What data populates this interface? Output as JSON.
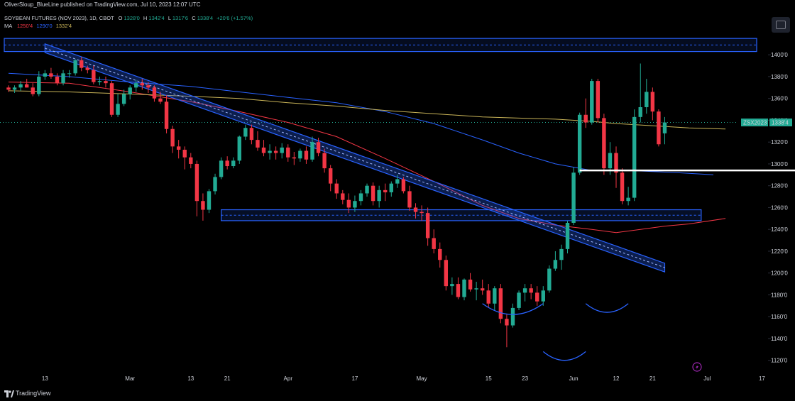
{
  "header": {
    "publisher_line": "OliverSloup_BlueLine published on TradingView.com, Jul 10, 2023 12:07 UTC"
  },
  "legend": {
    "title": "SOYBEAN FUTURES (NOV 2023), 1D, CBOT",
    "ohlc": [
      {
        "key": "O",
        "value": "1328'0"
      },
      {
        "key": "H",
        "value": "1342'4"
      },
      {
        "key": "L",
        "value": "1317'6"
      },
      {
        "key": "C",
        "value": "1338'4"
      }
    ],
    "change": "+20'6 (+1.57%)",
    "ma_label": "MA",
    "ma_values": [
      "1250'4",
      "1290'0",
      "1332'4"
    ]
  },
  "price_tag": {
    "symbol": "ZSX2023",
    "value": "1338'4"
  },
  "footer": {
    "brand": "TradingView"
  },
  "colors": {
    "up": "#22ab94",
    "down": "#f23645",
    "ma_red": "#f23645",
    "ma_blue": "#2962ff",
    "ma_yellow": "#c9b458",
    "channel": "#2962ff",
    "zone": "#2962ff",
    "white_line": "#ffffff",
    "pattern": "#2962ff"
  },
  "chart_data": {
    "type": "candlestick",
    "y_range": [
      1112,
      1432
    ],
    "y_ticks": [
      {
        "value": 1400,
        "label": "1400'0"
      },
      {
        "value": 1380,
        "label": "1380'0"
      },
      {
        "value": 1360,
        "label": "1360'0"
      },
      {
        "value": 1340,
        "label": "1340'0"
      },
      {
        "value": 1320,
        "label": "1320'0"
      },
      {
        "value": 1300,
        "label": "1300'0"
      },
      {
        "value": 1280,
        "label": "1280'0"
      },
      {
        "value": 1260,
        "label": "1260'0"
      },
      {
        "value": 1240,
        "label": "1240'0"
      },
      {
        "value": 1220,
        "label": "1220'0"
      },
      {
        "value": 1200,
        "label": "1200'0"
      },
      {
        "value": 1180,
        "label": "1180'0"
      },
      {
        "value": 1160,
        "label": "1160'0"
      },
      {
        "value": 1140,
        "label": "1140'0"
      },
      {
        "value": 1120,
        "label": "1120'0"
      }
    ],
    "x_ticks": [
      {
        "bar": 6,
        "label": "13"
      },
      {
        "bar": 20,
        "label": "Mar"
      },
      {
        "bar": 30,
        "label": "13"
      },
      {
        "bar": 36,
        "label": "21"
      },
      {
        "bar": 46,
        "label": "Apr"
      },
      {
        "bar": 57,
        "label": "17"
      },
      {
        "bar": 68,
        "label": "May"
      },
      {
        "bar": 79,
        "label": "15"
      },
      {
        "bar": 85,
        "label": "23"
      },
      {
        "bar": 93,
        "label": "Jun"
      },
      {
        "bar": 100,
        "label": "12"
      },
      {
        "bar": 106,
        "label": "21"
      },
      {
        "bar": 115,
        "label": "Jul"
      },
      {
        "bar": 124,
        "label": "17"
      }
    ],
    "candles": [
      {
        "o": 1370,
        "h": 1372,
        "l": 1366,
        "c": 1368
      },
      {
        "o": 1368,
        "h": 1372,
        "l": 1365,
        "c": 1370
      },
      {
        "o": 1370,
        "h": 1376,
        "l": 1367,
        "c": 1373
      },
      {
        "o": 1373,
        "h": 1378,
        "l": 1370,
        "c": 1370
      },
      {
        "o": 1370,
        "h": 1374,
        "l": 1362,
        "c": 1364
      },
      {
        "o": 1364,
        "h": 1385,
        "l": 1362,
        "c": 1380
      },
      {
        "o": 1380,
        "h": 1386,
        "l": 1377,
        "c": 1383
      },
      {
        "o": 1383,
        "h": 1388,
        "l": 1378,
        "c": 1380
      },
      {
        "o": 1380,
        "h": 1383,
        "l": 1372,
        "c": 1374
      },
      {
        "o": 1374,
        "h": 1386,
        "l": 1372,
        "c": 1383
      },
      {
        "o": 1383,
        "h": 1386,
        "l": 1379,
        "c": 1383
      },
      {
        "o": 1383,
        "h": 1396,
        "l": 1381,
        "c": 1395
      },
      {
        "o": 1395,
        "h": 1398,
        "l": 1385,
        "c": 1388
      },
      {
        "o": 1388,
        "h": 1390,
        "l": 1383,
        "c": 1386
      },
      {
        "o": 1386,
        "h": 1390,
        "l": 1373,
        "c": 1375
      },
      {
        "o": 1375,
        "h": 1380,
        "l": 1372,
        "c": 1376
      },
      {
        "o": 1376,
        "h": 1380,
        "l": 1370,
        "c": 1374
      },
      {
        "o": 1374,
        "h": 1376,
        "l": 1343,
        "c": 1345
      },
      {
        "o": 1345,
        "h": 1364,
        "l": 1343,
        "c": 1355
      },
      {
        "o": 1355,
        "h": 1368,
        "l": 1353,
        "c": 1364
      },
      {
        "o": 1364,
        "h": 1372,
        "l": 1359,
        "c": 1370
      },
      {
        "o": 1370,
        "h": 1377,
        "l": 1366,
        "c": 1374
      },
      {
        "o": 1374,
        "h": 1378,
        "l": 1368,
        "c": 1372
      },
      {
        "o": 1372,
        "h": 1375,
        "l": 1365,
        "c": 1370
      },
      {
        "o": 1370,
        "h": 1372,
        "l": 1357,
        "c": 1360
      },
      {
        "o": 1360,
        "h": 1366,
        "l": 1355,
        "c": 1357
      },
      {
        "o": 1357,
        "h": 1363,
        "l": 1328,
        "c": 1332
      },
      {
        "o": 1332,
        "h": 1335,
        "l": 1310,
        "c": 1316
      },
      {
        "o": 1316,
        "h": 1322,
        "l": 1305,
        "c": 1313
      },
      {
        "o": 1313,
        "h": 1316,
        "l": 1295,
        "c": 1306
      },
      {
        "o": 1306,
        "h": 1310,
        "l": 1296,
        "c": 1300
      },
      {
        "o": 1300,
        "h": 1303,
        "l": 1252,
        "c": 1266
      },
      {
        "o": 1266,
        "h": 1273,
        "l": 1248,
        "c": 1258
      },
      {
        "o": 1258,
        "h": 1277,
        "l": 1255,
        "c": 1275
      },
      {
        "o": 1275,
        "h": 1291,
        "l": 1272,
        "c": 1288
      },
      {
        "o": 1288,
        "h": 1306,
        "l": 1286,
        "c": 1303
      },
      {
        "o": 1303,
        "h": 1307,
        "l": 1295,
        "c": 1298
      },
      {
        "o": 1298,
        "h": 1306,
        "l": 1296,
        "c": 1303
      },
      {
        "o": 1303,
        "h": 1326,
        "l": 1300,
        "c": 1325
      },
      {
        "o": 1325,
        "h": 1336,
        "l": 1322,
        "c": 1333
      },
      {
        "o": 1333,
        "h": 1336,
        "l": 1318,
        "c": 1322
      },
      {
        "o": 1322,
        "h": 1330,
        "l": 1312,
        "c": 1315
      },
      {
        "o": 1315,
        "h": 1322,
        "l": 1307,
        "c": 1310
      },
      {
        "o": 1310,
        "h": 1318,
        "l": 1304,
        "c": 1312
      },
      {
        "o": 1312,
        "h": 1316,
        "l": 1304,
        "c": 1310
      },
      {
        "o": 1310,
        "h": 1319,
        "l": 1305,
        "c": 1315
      },
      {
        "o": 1315,
        "h": 1318,
        "l": 1302,
        "c": 1306
      },
      {
        "o": 1306,
        "h": 1311,
        "l": 1299,
        "c": 1305
      },
      {
        "o": 1305,
        "h": 1314,
        "l": 1302,
        "c": 1312
      },
      {
        "o": 1312,
        "h": 1316,
        "l": 1300,
        "c": 1304
      },
      {
        "o": 1304,
        "h": 1325,
        "l": 1302,
        "c": 1320
      },
      {
        "o": 1320,
        "h": 1324,
        "l": 1307,
        "c": 1310
      },
      {
        "o": 1310,
        "h": 1314,
        "l": 1292,
        "c": 1296
      },
      {
        "o": 1296,
        "h": 1299,
        "l": 1275,
        "c": 1282
      },
      {
        "o": 1282,
        "h": 1286,
        "l": 1268,
        "c": 1273
      },
      {
        "o": 1273,
        "h": 1276,
        "l": 1263,
        "c": 1267
      },
      {
        "o": 1267,
        "h": 1273,
        "l": 1255,
        "c": 1260
      },
      {
        "o": 1260,
        "h": 1271,
        "l": 1256,
        "c": 1266
      },
      {
        "o": 1266,
        "h": 1276,
        "l": 1262,
        "c": 1273
      },
      {
        "o": 1273,
        "h": 1282,
        "l": 1270,
        "c": 1280
      },
      {
        "o": 1280,
        "h": 1283,
        "l": 1262,
        "c": 1266
      },
      {
        "o": 1266,
        "h": 1280,
        "l": 1260,
        "c": 1276
      },
      {
        "o": 1276,
        "h": 1282,
        "l": 1266,
        "c": 1274
      },
      {
        "o": 1274,
        "h": 1284,
        "l": 1270,
        "c": 1282
      },
      {
        "o": 1282,
        "h": 1290,
        "l": 1278,
        "c": 1286
      },
      {
        "o": 1286,
        "h": 1288,
        "l": 1273,
        "c": 1275
      },
      {
        "o": 1275,
        "h": 1280,
        "l": 1257,
        "c": 1260
      },
      {
        "o": 1260,
        "h": 1264,
        "l": 1250,
        "c": 1256
      },
      {
        "o": 1256,
        "h": 1262,
        "l": 1248,
        "c": 1255
      },
      {
        "o": 1255,
        "h": 1260,
        "l": 1225,
        "c": 1232
      },
      {
        "o": 1232,
        "h": 1240,
        "l": 1218,
        "c": 1222
      },
      {
        "o": 1222,
        "h": 1228,
        "l": 1205,
        "c": 1212
      },
      {
        "o": 1212,
        "h": 1216,
        "l": 1184,
        "c": 1188
      },
      {
        "o": 1188,
        "h": 1196,
        "l": 1180,
        "c": 1190
      },
      {
        "o": 1190,
        "h": 1196,
        "l": 1176,
        "c": 1178
      },
      {
        "o": 1178,
        "h": 1195,
        "l": 1175,
        "c": 1194
      },
      {
        "o": 1194,
        "h": 1200,
        "l": 1183,
        "c": 1185
      },
      {
        "o": 1185,
        "h": 1192,
        "l": 1175,
        "c": 1186
      },
      {
        "o": 1186,
        "h": 1194,
        "l": 1180,
        "c": 1184
      },
      {
        "o": 1184,
        "h": 1190,
        "l": 1168,
        "c": 1172
      },
      {
        "o": 1172,
        "h": 1188,
        "l": 1166,
        "c": 1186
      },
      {
        "o": 1186,
        "h": 1190,
        "l": 1154,
        "c": 1158
      },
      {
        "o": 1158,
        "h": 1162,
        "l": 1132,
        "c": 1152
      },
      {
        "o": 1152,
        "h": 1172,
        "l": 1150,
        "c": 1168
      },
      {
        "o": 1168,
        "h": 1184,
        "l": 1166,
        "c": 1182
      },
      {
        "o": 1182,
        "h": 1190,
        "l": 1174,
        "c": 1186
      },
      {
        "o": 1186,
        "h": 1190,
        "l": 1176,
        "c": 1182
      },
      {
        "o": 1182,
        "h": 1188,
        "l": 1170,
        "c": 1174
      },
      {
        "o": 1174,
        "h": 1188,
        "l": 1170,
        "c": 1184
      },
      {
        "o": 1184,
        "h": 1207,
        "l": 1182,
        "c": 1204
      },
      {
        "o": 1204,
        "h": 1220,
        "l": 1202,
        "c": 1212
      },
      {
        "o": 1212,
        "h": 1226,
        "l": 1203,
        "c": 1222
      },
      {
        "o": 1222,
        "h": 1248,
        "l": 1218,
        "c": 1246
      },
      {
        "o": 1246,
        "h": 1297,
        "l": 1244,
        "c": 1292
      },
      {
        "o": 1292,
        "h": 1347,
        "l": 1290,
        "c": 1345
      },
      {
        "o": 1345,
        "h": 1360,
        "l": 1333,
        "c": 1338
      },
      {
        "o": 1338,
        "h": 1378,
        "l": 1336,
        "c": 1376
      },
      {
        "o": 1376,
        "h": 1378,
        "l": 1338,
        "c": 1342
      },
      {
        "o": 1342,
        "h": 1346,
        "l": 1290,
        "c": 1296
      },
      {
        "o": 1296,
        "h": 1320,
        "l": 1290,
        "c": 1310
      },
      {
        "o": 1310,
        "h": 1316,
        "l": 1278,
        "c": 1292
      },
      {
        "o": 1292,
        "h": 1296,
        "l": 1263,
        "c": 1266
      },
      {
        "o": 1266,
        "h": 1279,
        "l": 1262,
        "c": 1269
      },
      {
        "o": 1269,
        "h": 1350,
        "l": 1266,
        "c": 1343
      },
      {
        "o": 1343,
        "h": 1392,
        "l": 1338,
        "c": 1352
      },
      {
        "o": 1352,
        "h": 1378,
        "l": 1346,
        "c": 1366
      },
      {
        "o": 1366,
        "h": 1370,
        "l": 1340,
        "c": 1348
      },
      {
        "o": 1348,
        "h": 1350,
        "l": 1316,
        "c": 1318
      },
      {
        "o": 1328,
        "h": 1343,
        "l": 1318,
        "c": 1338
      }
    ],
    "moving_averages": [
      {
        "label": "1250'4",
        "color": "#f23645",
        "points": [
          [
            0,
            1375
          ],
          [
            10,
            1374
          ],
          [
            20,
            1366
          ],
          [
            30,
            1357
          ],
          [
            38,
            1348
          ],
          [
            46,
            1338
          ],
          [
            54,
            1325
          ],
          [
            62,
            1305
          ],
          [
            70,
            1284
          ],
          [
            78,
            1262
          ],
          [
            84,
            1250
          ],
          [
            90,
            1244
          ],
          [
            96,
            1240
          ],
          [
            100,
            1237
          ],
          [
            104,
            1240
          ],
          [
            108,
            1243
          ],
          [
            112,
            1245
          ],
          [
            118,
            1250
          ]
        ]
      },
      {
        "label": "1290'0",
        "color": "#2962ff",
        "points": [
          [
            0,
            1383
          ],
          [
            10,
            1380
          ],
          [
            20,
            1375
          ],
          [
            30,
            1371
          ],
          [
            38,
            1366
          ],
          [
            46,
            1361
          ],
          [
            54,
            1356
          ],
          [
            62,
            1348
          ],
          [
            70,
            1337
          ],
          [
            78,
            1322
          ],
          [
            84,
            1310
          ],
          [
            90,
            1300
          ],
          [
            96,
            1294
          ],
          [
            102,
            1294
          ],
          [
            110,
            1292
          ],
          [
            116,
            1290
          ]
        ]
      },
      {
        "label": "1332'4",
        "color": "#c9b458",
        "points": [
          [
            0,
            1367
          ],
          [
            10,
            1366
          ],
          [
            20,
            1364
          ],
          [
            30,
            1362
          ],
          [
            38,
            1360
          ],
          [
            46,
            1356
          ],
          [
            54,
            1353
          ],
          [
            62,
            1349
          ],
          [
            70,
            1346
          ],
          [
            78,
            1343
          ],
          [
            84,
            1342
          ],
          [
            90,
            1341
          ],
          [
            96,
            1339
          ],
          [
            100,
            1337
          ],
          [
            106,
            1335
          ],
          [
            112,
            1333
          ],
          [
            118,
            1332
          ]
        ]
      }
    ],
    "drawings": {
      "descending_channel": {
        "from": {
          "bar": 6,
          "price": 1406
        },
        "to": {
          "bar": 108,
          "price": 1205
        },
        "width_price": 8
      },
      "support_zone": {
        "from_bar": 35,
        "to_bar": 114,
        "low": 1248,
        "high": 1258
      },
      "resistance_zone": {
        "low": 1403,
        "high": 1415
      },
      "neckline": {
        "from_bar": 94,
        "to_bar": 130,
        "price": 1294
      },
      "left_shoulder_arc": {
        "from_bar": 78,
        "to_bar": 88,
        "price": 1172,
        "depth": 10
      },
      "head_arc": {
        "from_bar": 88,
        "to_bar": 95,
        "price": 1128,
        "depth": 8
      },
      "right_shoulder_arc": {
        "from_bar": 95,
        "to_bar": 102,
        "price": 1172,
        "depth": 8
      },
      "horizontal_dashed": {
        "price": 1338
      }
    }
  }
}
